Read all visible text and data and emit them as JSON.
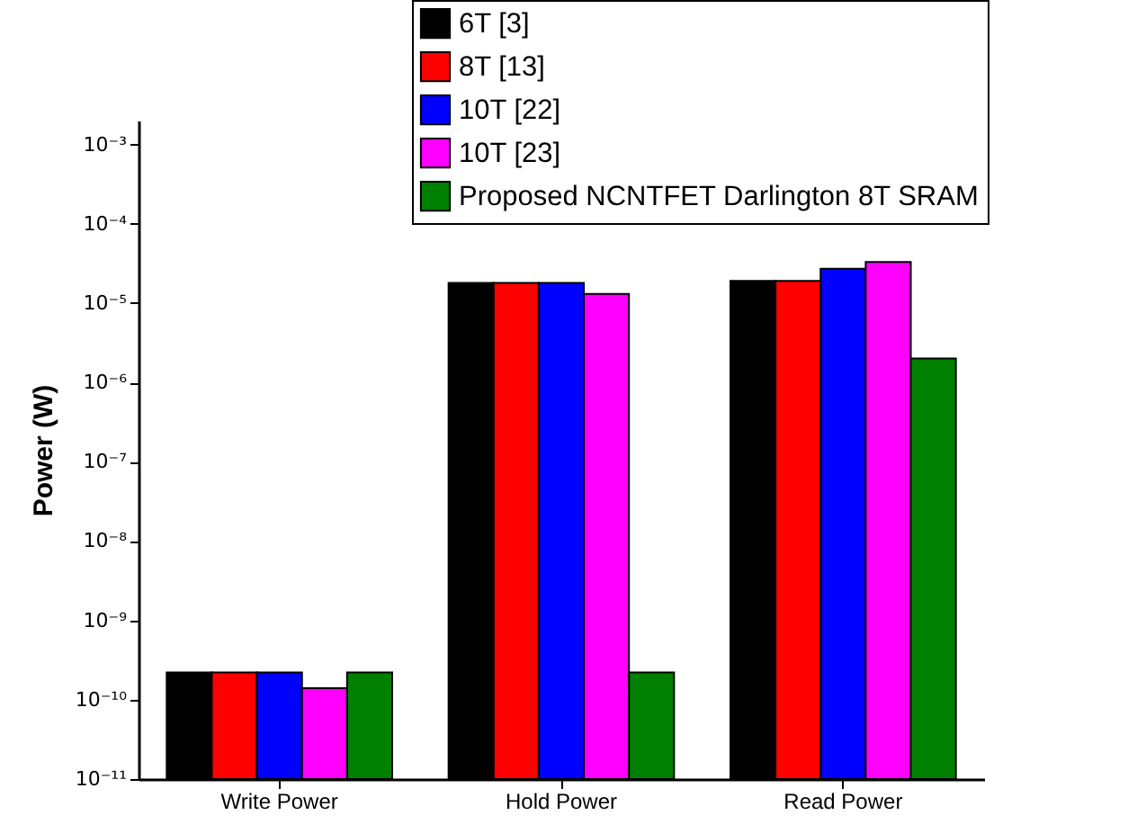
{
  "chart_data": {
    "type": "bar",
    "ylabel": "Power (W)",
    "categories": [
      "Write Power",
      "Hold Power",
      "Read Power"
    ],
    "series": [
      {
        "name": "6T [3]",
        "color": "#000000",
        "values": [
          2.2e-10,
          1.8e-05,
          1.9e-05
        ]
      },
      {
        "name": "8T [13]",
        "color": "#ff0000",
        "values": [
          2.2e-10,
          1.8e-05,
          1.9e-05
        ]
      },
      {
        "name": "10T [22]",
        "color": "#0000ff",
        "values": [
          2.2e-10,
          1.8e-05,
          2.7e-05
        ]
      },
      {
        "name": "10T [23]",
        "color": "#ff00ff",
        "values": [
          1.4e-10,
          1.3e-05,
          3.3e-05
        ]
      },
      {
        "name": "Proposed NCNTFET Darlington 8T SRAM",
        "color": "#008000",
        "values": [
          2.2e-10,
          2.2e-10,
          2e-06
        ]
      }
    ],
    "log": "y",
    "ylim": [
      1e-11,
      0.002
    ],
    "yticks": [
      {
        "value": 1e-11,
        "label": "10⁻¹¹"
      },
      {
        "value": 1e-10,
        "label": "10⁻¹⁰"
      },
      {
        "value": 1e-09,
        "label": "10⁻⁹"
      },
      {
        "value": 1e-08,
        "label": "10⁻⁸"
      },
      {
        "value": 1e-07,
        "label": "10⁻⁷"
      },
      {
        "value": 1e-06,
        "label": "10⁻⁶"
      },
      {
        "value": 1e-05,
        "label": "10⁻⁵"
      },
      {
        "value": 0.0001,
        "label": "10⁻⁴"
      },
      {
        "value": 0.001,
        "label": "10⁻³"
      }
    ],
    "grid": false,
    "legend": "top right"
  }
}
